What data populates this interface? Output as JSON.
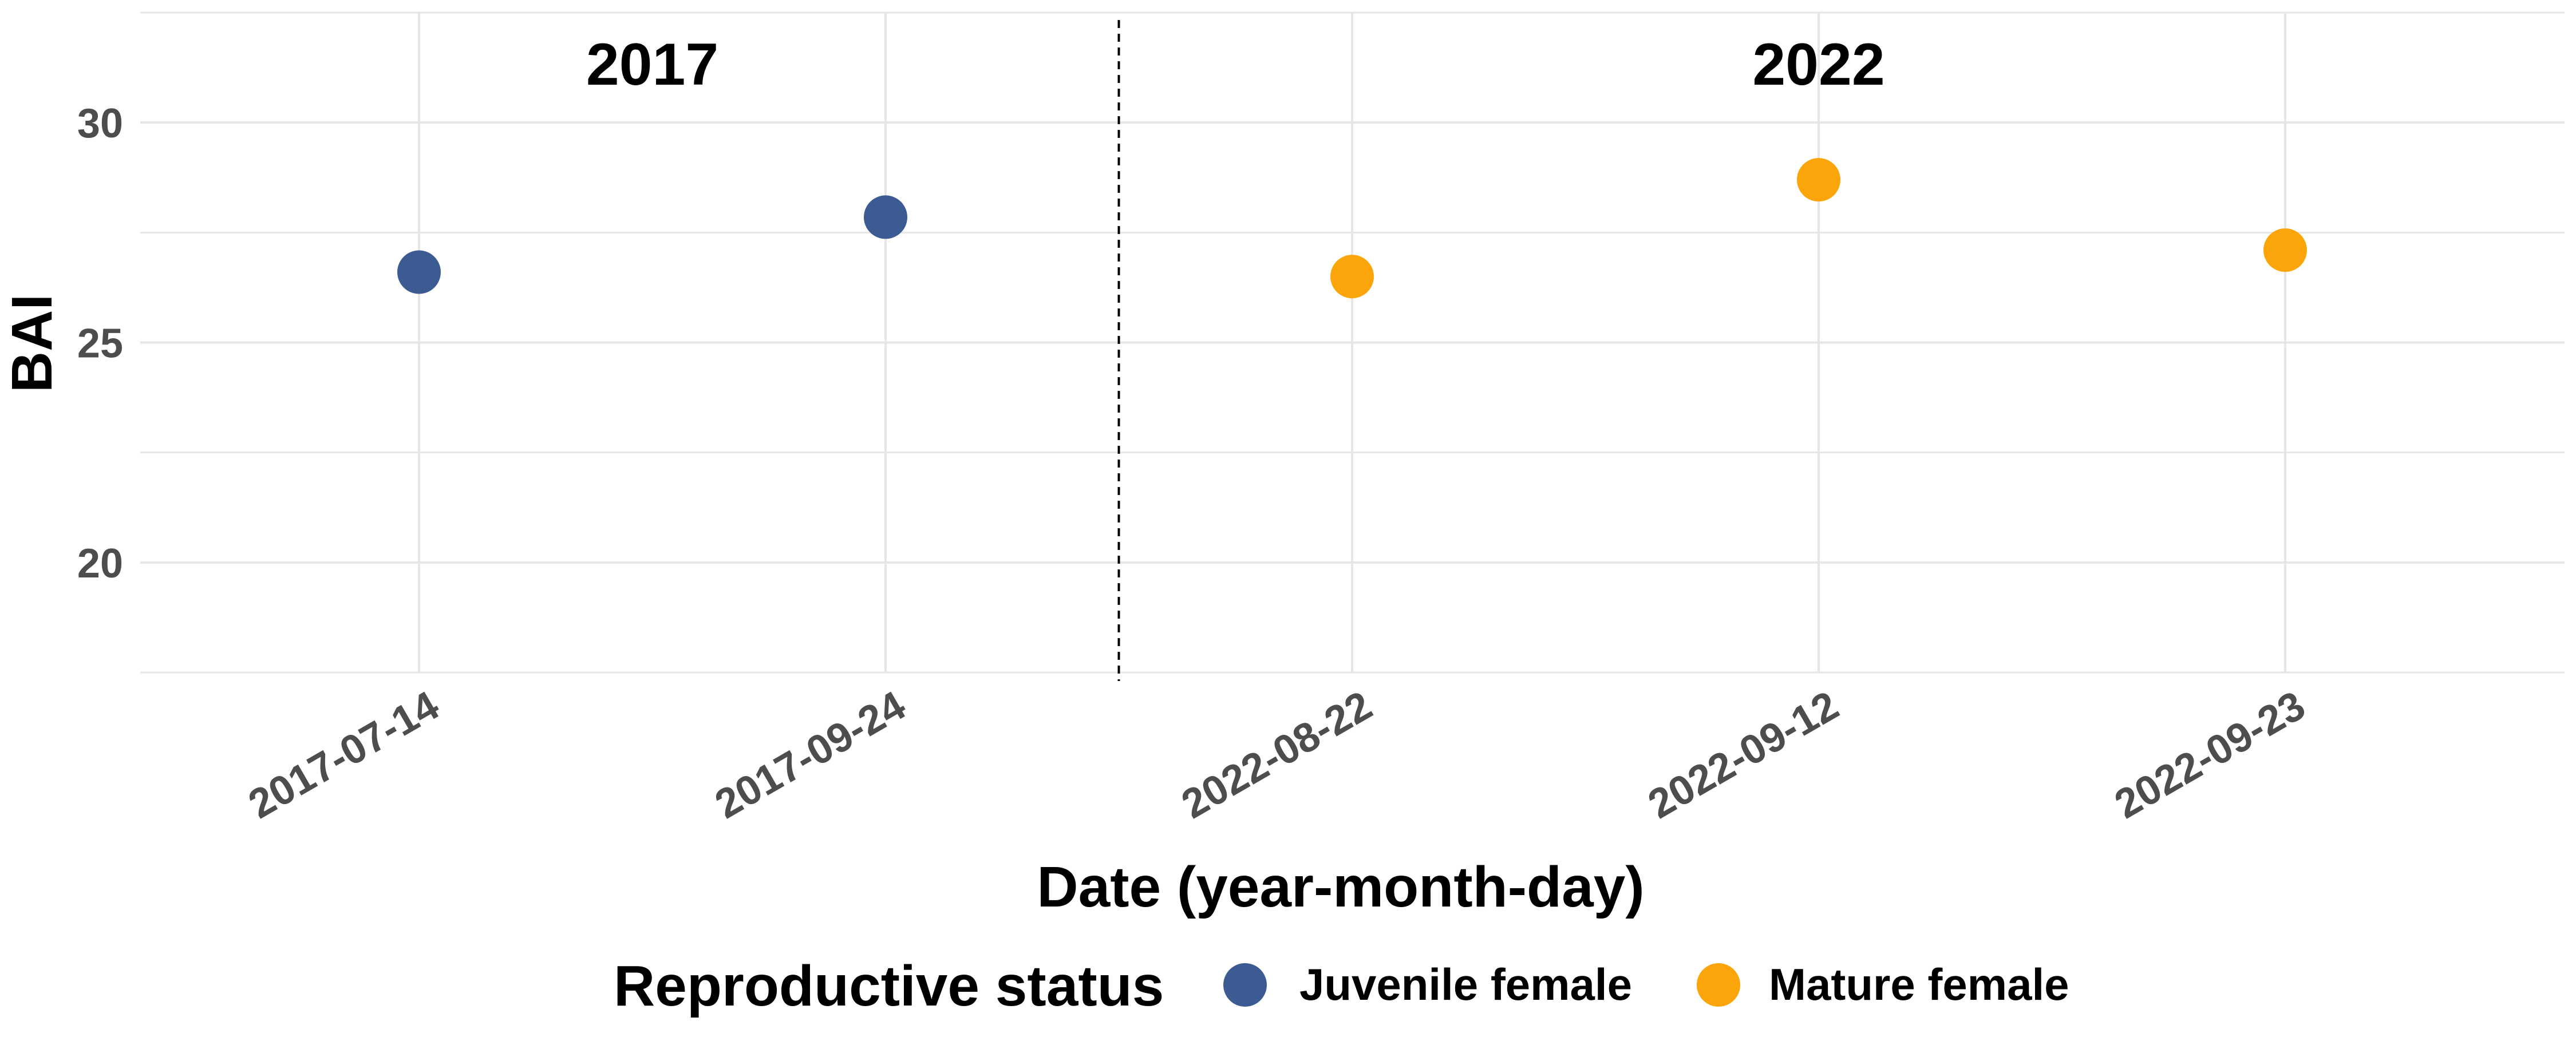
{
  "chart_data": {
    "type": "scatter",
    "title": "",
    "xlabel": "Date (year-month-day)",
    "ylabel": "BAI",
    "categories": [
      "2017-07-14",
      "2017-09-24",
      "2022-08-22",
      "2022-09-12",
      "2022-09-23"
    ],
    "ylim": [
      17.5,
      32.5
    ],
    "yticks": [
      "20",
      "25",
      "30"
    ],
    "grid": true,
    "series": [
      {
        "name": "Juvenile female",
        "color": "#3b5b92",
        "points": [
          {
            "x": "2017-07-14",
            "y": 26.6
          },
          {
            "x": "2017-09-24",
            "y": 27.85
          }
        ]
      },
      {
        "name": "Mature female",
        "color": "#fca50a",
        "points": [
          {
            "x": "2022-08-22",
            "y": 26.5
          },
          {
            "x": "2022-09-12",
            "y": 28.7
          },
          {
            "x": "2022-09-23",
            "y": 27.1
          }
        ]
      }
    ],
    "annotations": [
      {
        "text": "2017",
        "position": "above first group"
      },
      {
        "text": "2022",
        "position": "above second group"
      }
    ],
    "separator": {
      "style": "dashed",
      "between": [
        "2017-09-24",
        "2022-08-22"
      ]
    },
    "legend": {
      "title": "Reproductive status",
      "placement": "bottom",
      "items": [
        "Juvenile female",
        "Mature female"
      ]
    }
  }
}
